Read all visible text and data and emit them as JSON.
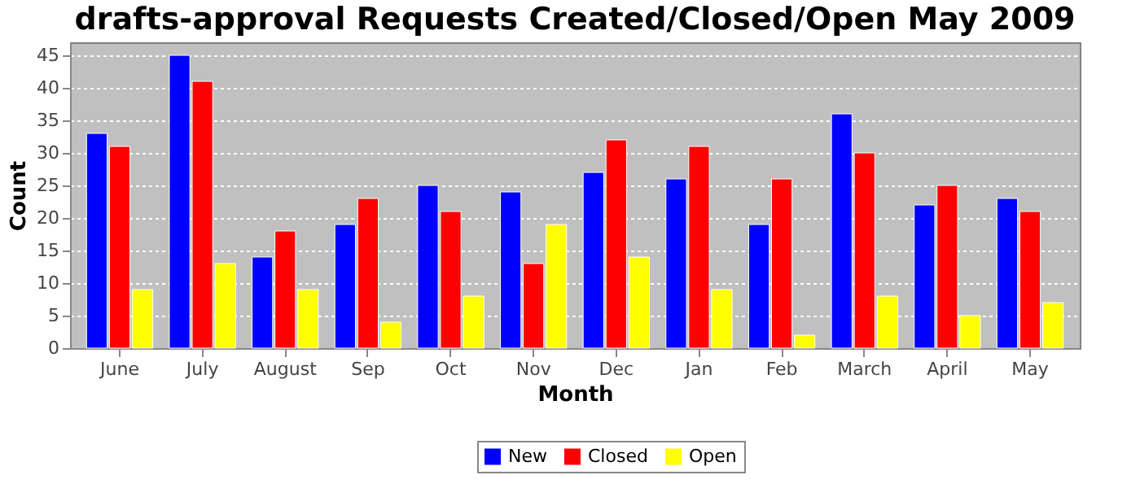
{
  "chart_data": {
    "type": "bar",
    "title": "drafts-approval Requests Created/Closed/Open May 2009",
    "xlabel": "Month",
    "ylabel": "Count",
    "categories": [
      "June",
      "July",
      "August",
      "Sep",
      "Oct",
      "Nov",
      "Dec",
      "Jan",
      "Feb",
      "March",
      "April",
      "May"
    ],
    "series": [
      {
        "name": "New",
        "color": "#0000ff",
        "values": [
          33,
          45,
          14,
          19,
          25,
          24,
          27,
          26,
          19,
          36,
          22,
          23
        ]
      },
      {
        "name": "Closed",
        "color": "#ff0000",
        "values": [
          31,
          41,
          18,
          23,
          21,
          13,
          32,
          31,
          26,
          30,
          25,
          21
        ]
      },
      {
        "name": "Open",
        "color": "#ffff00",
        "values": [
          9,
          13,
          9,
          4,
          8,
          19,
          14,
          9,
          2,
          8,
          5,
          7
        ]
      }
    ],
    "ylim": [
      0,
      47
    ],
    "yticks": [
      0,
      5,
      10,
      15,
      20,
      25,
      30,
      35,
      40,
      45
    ],
    "grid": "y",
    "legend": "bottom"
  }
}
